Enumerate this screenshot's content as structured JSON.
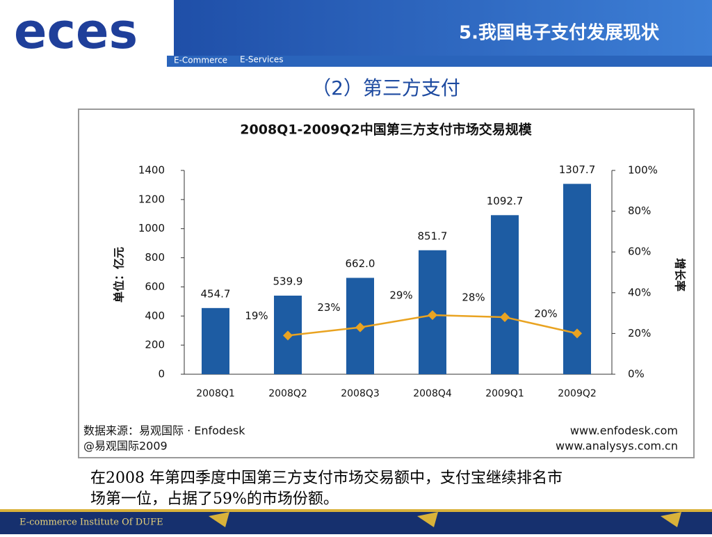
{
  "header": {
    "logo": "eces",
    "tag1": "E-Commerce",
    "tag2": "E-Services",
    "title": "5.我国电子支付发展现状"
  },
  "subtitle": "（2）第三方支付",
  "chart_data": {
    "type": "bar",
    "title": "2008Q1-2009Q2中国第三方支付市场交易规模",
    "categories": [
      "2008Q1",
      "2008Q2",
      "2008Q3",
      "2008Q4",
      "2009Q1",
      "2009Q2"
    ],
    "series": [
      {
        "color": "#1d5ca3",
        "values": [
          454.7,
          539.9,
          662.0,
          851.7,
          1092.7,
          1307.7
        ],
        "value_labels": [
          "454.7",
          "539.9",
          "662.0",
          "851.7",
          "1092.7",
          "1307.7"
        ]
      },
      {
        "color": "#e9a321",
        "axis": "y2",
        "values": [
          null,
          19,
          23,
          29,
          28,
          20
        ],
        "value_labels": [
          null,
          "19%",
          "23%",
          "29%",
          "28%",
          "20%"
        ]
      }
    ],
    "ylabel": "单位：亿元",
    "y2label": "增长率",
    "ylim": [
      0,
      1400
    ],
    "yticks": [
      0,
      200,
      400,
      600,
      800,
      1000,
      1200,
      1400
    ],
    "y2lim": [
      0,
      100
    ],
    "y2ticks": [
      {
        "value": 0,
        "label": "0%"
      },
      {
        "value": 20,
        "label": "20%"
      },
      {
        "value": 40,
        "label": "40%"
      },
      {
        "value": 60,
        "label": "60%"
      },
      {
        "value": 80,
        "label": "80%"
      },
      {
        "value": 100,
        "label": "100%"
      }
    ],
    "grid": false,
    "source": [
      "数据来源：易观国际 · Enfodesk",
      "@易观国际2009"
    ],
    "links": [
      "www.enfodesk.com",
      "www.analysys.com.cn"
    ]
  },
  "body": [
    "在2008 年第四季度中国第三方支付市场交易额中，支付宝继续排名市",
    "场第一位，占据了59%的市场份额。"
  ],
  "footer": "E-commerce Institute Of DUFE"
}
